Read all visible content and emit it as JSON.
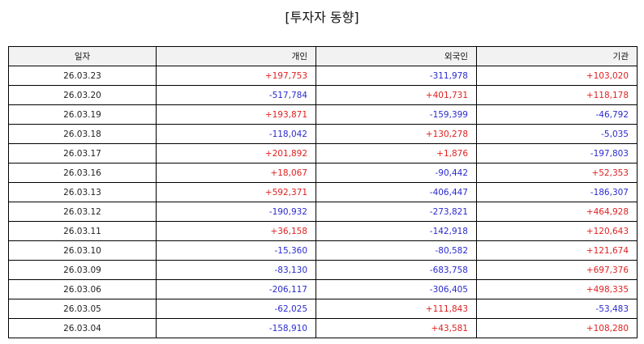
{
  "title": "[투자자 동향]",
  "columns": [
    "일자",
    "개인",
    "외국인",
    "기관"
  ],
  "rows": [
    [
      "26.03.23",
      "+197,753",
      "-311,978",
      "+103,020"
    ],
    [
      "26.03.20",
      "-517,784",
      "+401,731",
      "+118,178"
    ],
    [
      "26.03.19",
      "+193,871",
      "-159,399",
      "-46,792"
    ],
    [
      "26.03.18",
      "-118,042",
      "+130,278",
      "-5,035"
    ],
    [
      "26.03.17",
      "+201,892",
      "+1,876",
      "-197,803"
    ],
    [
      "26.03.16",
      "+18,067",
      "-90,442",
      "+52,353"
    ],
    [
      "26.03.13",
      "+592,371",
      "-406,447",
      "-186,307"
    ],
    [
      "26.03.12",
      "-190,932",
      "-273,821",
      "+464,928"
    ],
    [
      "26.03.11",
      "+36,158",
      "-142,918",
      "+120,643"
    ],
    [
      "26.03.10",
      "-15,360",
      "-80,582",
      "+121,674"
    ],
    [
      "26.03.09",
      "-83,130",
      "-683,758",
      "+697,376"
    ],
    [
      "26.03.06",
      "-206,117",
      "-306,405",
      "+498,335"
    ],
    [
      "26.03.05",
      "-62,025",
      "+111,843",
      "-53,483"
    ],
    [
      "26.03.04",
      "-158,910",
      "+43,581",
      "+108,280"
    ]
  ],
  "colors": {
    "positive": "#e02020",
    "negative": "#2a2ad0",
    "header_bg": "#f2f2f2"
  }
}
